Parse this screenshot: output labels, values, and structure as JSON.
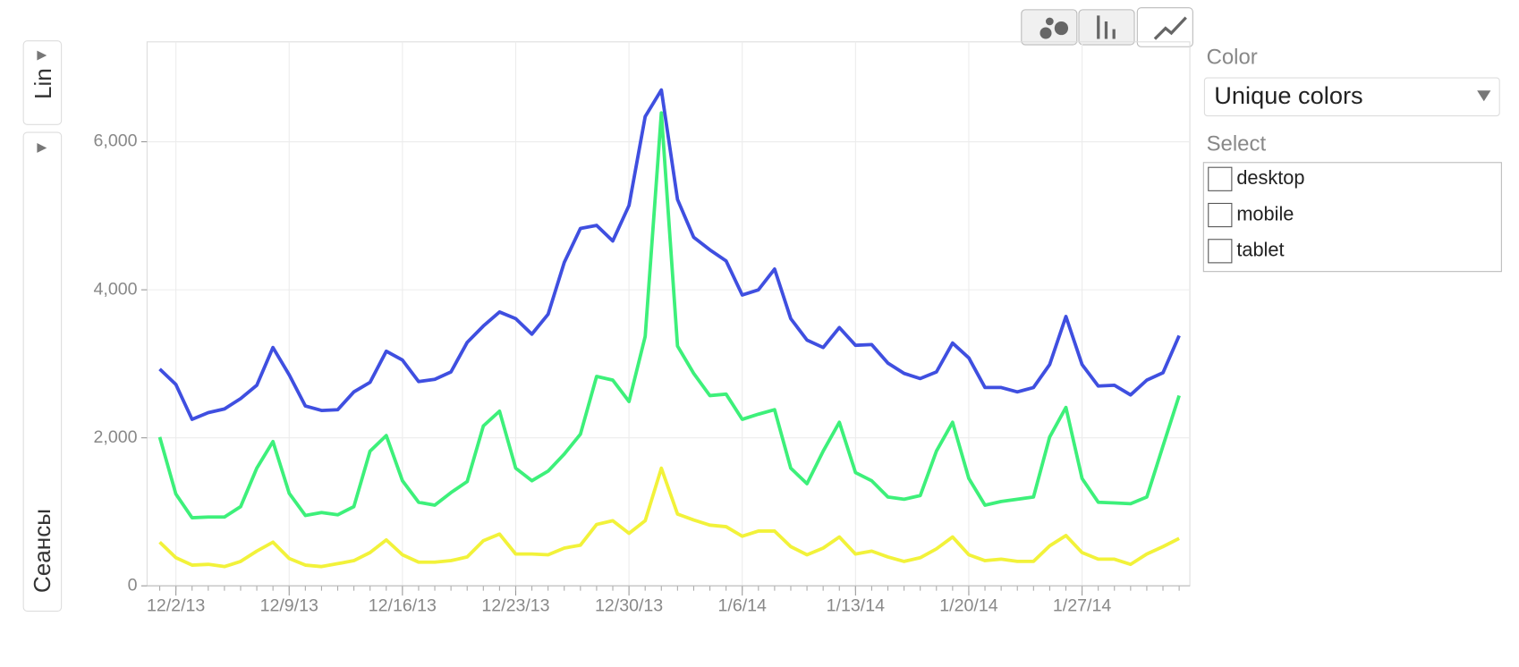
{
  "chart_data": {
    "type": "line",
    "x": [
      "2013-12-01",
      "2013-12-02",
      "2013-12-03",
      "2013-12-04",
      "2013-12-05",
      "2013-12-06",
      "2013-12-07",
      "2013-12-08",
      "2013-12-09",
      "2013-12-10",
      "2013-12-11",
      "2013-12-12",
      "2013-12-13",
      "2013-12-14",
      "2013-12-15",
      "2013-12-16",
      "2013-12-17",
      "2013-12-18",
      "2013-12-19",
      "2013-12-20",
      "2013-12-21",
      "2013-12-22",
      "2013-12-23",
      "2013-12-24",
      "2013-12-25",
      "2013-12-26",
      "2013-12-27",
      "2013-12-28",
      "2013-12-29",
      "2013-12-30",
      "2013-12-31",
      "2014-01-01",
      "2014-01-02",
      "2014-01-03",
      "2014-01-04",
      "2014-01-05",
      "2014-01-06",
      "2014-01-07",
      "2014-01-08",
      "2014-01-09",
      "2014-01-10",
      "2014-01-11",
      "2014-01-12",
      "2014-01-13",
      "2014-01-14",
      "2014-01-15",
      "2014-01-16",
      "2014-01-17",
      "2014-01-18",
      "2014-01-19",
      "2014-01-20",
      "2014-01-21",
      "2014-01-22",
      "2014-01-23",
      "2014-01-24",
      "2014-01-25",
      "2014-01-26",
      "2014-01-27",
      "2014-01-28",
      "2014-01-29",
      "2014-01-30",
      "2014-01-31",
      "2014-02-01",
      "2014-02-02"
    ],
    "series": [
      {
        "name": "desktop",
        "color": "#3f4fe0",
        "values": [
          2930,
          2720,
          2250,
          2340,
          2390,
          2530,
          2710,
          3220,
          2850,
          2430,
          2370,
          2380,
          2620,
          2750,
          3170,
          3050,
          2760,
          2790,
          2890,
          3290,
          3510,
          3700,
          3610,
          3400,
          3670,
          4370,
          4830,
          4870,
          4660,
          5140,
          6340,
          6700,
          5220,
          4710,
          4540,
          4390,
          3930,
          4000,
          4280,
          3610,
          3320,
          3220,
          3490,
          3250,
          3260,
          3010,
          2870,
          2800,
          2890,
          3280,
          3080,
          2680,
          2680,
          2620,
          2680,
          2990,
          3640,
          2990,
          2700,
          2710,
          2580,
          2780,
          2880,
          3380
        ]
      },
      {
        "name": "mobile",
        "color": "#3df07a",
        "values": [
          2010,
          1240,
          920,
          930,
          930,
          1070,
          1590,
          1950,
          1250,
          950,
          990,
          960,
          1070,
          1820,
          2030,
          1420,
          1130,
          1090,
          1260,
          1410,
          2160,
          2360,
          1590,
          1420,
          1550,
          1780,
          2050,
          2830,
          2780,
          2490,
          3370,
          6390,
          3240,
          2870,
          2570,
          2590,
          2250,
          2320,
          2380,
          1590,
          1380,
          1820,
          2210,
          1530,
          1420,
          1200,
          1170,
          1220,
          1820,
          2210,
          1450,
          1090,
          1140,
          1170,
          1200,
          2010,
          2410,
          1450,
          1130,
          1120,
          1110,
          1200,
          1890,
          2570
        ]
      },
      {
        "name": "tablet",
        "color": "#f2f23a",
        "values": [
          590,
          380,
          280,
          290,
          260,
          330,
          470,
          590,
          370,
          280,
          260,
          300,
          340,
          450,
          620,
          420,
          320,
          320,
          340,
          390,
          610,
          700,
          430,
          430,
          420,
          510,
          550,
          830,
          880,
          710,
          880,
          1590,
          970,
          890,
          820,
          800,
          670,
          740,
          740,
          530,
          420,
          510,
          660,
          430,
          470,
          390,
          330,
          380,
          500,
          660,
          420,
          340,
          360,
          330,
          330,
          540,
          680,
          450,
          360,
          360,
          290,
          430,
          530,
          640
        ]
      }
    ],
    "ylabel": "Сеансы",
    "ylim": [
      0,
      7350
    ],
    "yticks": [
      0,
      {
        "value": 2000,
        "label": "2,000"
      },
      {
        "value": 4000,
        "label": "4,000"
      },
      {
        "value": 6000,
        "label": "6,000"
      }
    ],
    "xticks": [
      {
        "value": "2013-12-02",
        "label": "12/2/13"
      },
      {
        "value": "2013-12-09",
        "label": "12/9/13"
      },
      {
        "value": "2013-12-16",
        "label": "12/16/13"
      },
      {
        "value": "2013-12-23",
        "label": "12/23/13"
      },
      {
        "value": "2013-12-30",
        "label": "12/30/13"
      },
      {
        "value": "2014-01-06",
        "label": "1/6/14"
      },
      {
        "value": "2014-01-13",
        "label": "1/13/14"
      },
      {
        "value": "2014-01-20",
        "label": "1/20/14"
      },
      {
        "value": "2014-01-27",
        "label": "1/27/14"
      }
    ],
    "grid": true
  },
  "ui": {
    "scale_button": "Lin",
    "color_label": "Color",
    "color_choice": "Unique colors",
    "select_label": "Select"
  }
}
